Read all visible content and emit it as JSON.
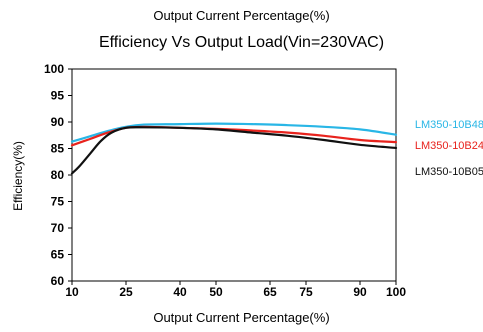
{
  "top_caption": "Output Current Percentage(%)",
  "chart_data": {
    "type": "line",
    "title": "Efficiency Vs Output Load(Vin=230VAC)",
    "xlabel": "Output Current Percentage(%)",
    "ylabel": "Efficiency(%)",
    "xticks": [
      10,
      25,
      40,
      50,
      65,
      75,
      90,
      100
    ],
    "yticks": [
      60,
      65,
      70,
      75,
      80,
      85,
      90,
      95,
      100
    ],
    "xlim": [
      10,
      100
    ],
    "ylim": [
      60,
      100
    ],
    "grid": false,
    "legend_position": "right",
    "series": [
      {
        "name": "LM350-10B48",
        "color": "#29b6e6",
        "x": [
          10,
          15,
          20,
          25,
          30,
          40,
          50,
          60,
          70,
          80,
          90,
          100
        ],
        "y": [
          86.3,
          87.3,
          88.3,
          89.1,
          89.5,
          89.6,
          89.7,
          89.6,
          89.4,
          89.1,
          88.6,
          87.6
        ]
      },
      {
        "name": "LM350-10B24",
        "color": "#e8231d",
        "x": [
          10,
          15,
          20,
          25,
          30,
          40,
          50,
          60,
          70,
          80,
          90,
          100
        ],
        "y": [
          85.6,
          86.8,
          88.0,
          88.9,
          89.1,
          88.9,
          88.7,
          88.4,
          88.0,
          87.4,
          86.6,
          86.2
        ]
      },
      {
        "name": "LM350-10B05",
        "color": "#111111",
        "x": [
          10,
          12,
          15,
          18,
          21,
          25,
          30,
          40,
          50,
          60,
          70,
          80,
          90,
          100
        ],
        "y": [
          80.3,
          81.6,
          84.0,
          86.4,
          88.0,
          88.9,
          89.0,
          88.9,
          88.6,
          88.0,
          87.4,
          86.6,
          85.7,
          85.1
        ]
      }
    ]
  }
}
